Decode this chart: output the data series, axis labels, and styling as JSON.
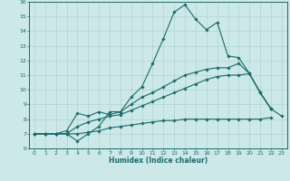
{
  "xlabel": "Humidex (Indice chaleur)",
  "xlim": [
    -0.5,
    23.5
  ],
  "ylim": [
    6,
    16
  ],
  "xticks": [
    0,
    1,
    2,
    3,
    4,
    5,
    6,
    7,
    8,
    9,
    10,
    11,
    12,
    13,
    14,
    15,
    16,
    17,
    18,
    19,
    20,
    21,
    22,
    23
  ],
  "yticks": [
    6,
    7,
    8,
    9,
    10,
    11,
    12,
    13,
    14,
    15,
    16
  ],
  "bg_color": "#cce8e8",
  "line_color": "#1a6b6b",
  "grid_color": "#aacfcf",
  "lines": [
    {
      "x": [
        0,
        1,
        2,
        3,
        4,
        5,
        6,
        7,
        8,
        9,
        10,
        11,
        12,
        13,
        14,
        15,
        16,
        17,
        18,
        19,
        20,
        21,
        22,
        23
      ],
      "y": [
        7.0,
        7.0,
        7.0,
        7.0,
        6.5,
        7.0,
        7.5,
        8.5,
        8.5,
        9.5,
        10.2,
        11.8,
        13.5,
        15.3,
        15.8,
        14.8,
        14.1,
        14.6,
        12.3,
        12.2,
        11.1,
        9.8,
        8.7,
        8.2
      ]
    },
    {
      "x": [
        0,
        1,
        2,
        3,
        4,
        5,
        6,
        7,
        8,
        9,
        10,
        11,
        12,
        13,
        14,
        15,
        16,
        17,
        18,
        19,
        20,
        21,
        22
      ],
      "y": [
        7.0,
        7.0,
        7.0,
        7.2,
        8.4,
        8.2,
        8.5,
        8.3,
        8.5,
        9.0,
        9.5,
        9.8,
        10.2,
        10.6,
        11.0,
        11.2,
        11.4,
        11.5,
        11.5,
        11.8,
        11.1,
        9.8,
        8.7
      ]
    },
    {
      "x": [
        0,
        1,
        2,
        3,
        4,
        5,
        6,
        7,
        8,
        9,
        10,
        11,
        12,
        13,
        14,
        15,
        16,
        17,
        18,
        19,
        20,
        21,
        22
      ],
      "y": [
        7.0,
        7.0,
        7.0,
        7.0,
        7.5,
        7.8,
        8.0,
        8.2,
        8.3,
        8.6,
        8.9,
        9.2,
        9.5,
        9.8,
        10.1,
        10.4,
        10.7,
        10.9,
        11.0,
        11.0,
        11.1,
        9.8,
        8.7
      ]
    },
    {
      "x": [
        0,
        1,
        2,
        3,
        4,
        5,
        6,
        7,
        8,
        9,
        10,
        11,
        12,
        13,
        14,
        15,
        16,
        17,
        18,
        19,
        20,
        21,
        22
      ],
      "y": [
        7.0,
        7.0,
        7.0,
        7.0,
        7.0,
        7.1,
        7.2,
        7.4,
        7.5,
        7.6,
        7.7,
        7.8,
        7.9,
        7.9,
        8.0,
        8.0,
        8.0,
        8.0,
        8.0,
        8.0,
        8.0,
        8.0,
        8.1
      ]
    }
  ]
}
